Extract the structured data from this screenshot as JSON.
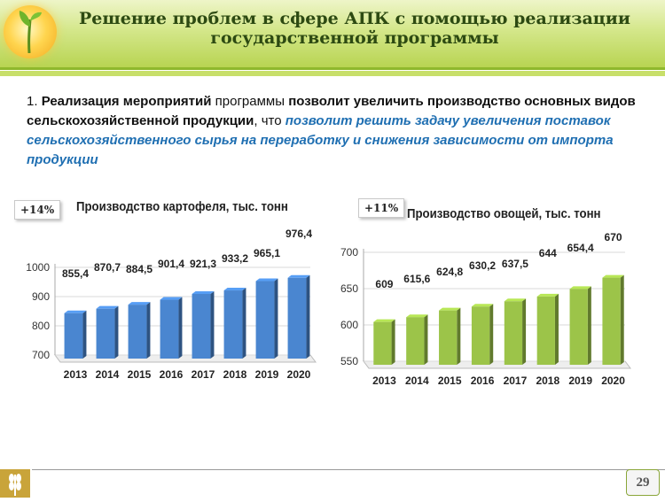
{
  "header": {
    "title_line1": "Решение проблем в сфере АПК с помощью реализации",
    "title_line2": "государственной программы"
  },
  "intro": {
    "num": "1.",
    "part1": "Реализация мероприятий",
    "part2": "программы",
    "part3": "позволит увеличить производство основных видов сельскохозяйственной продукции",
    "part4": ", что",
    "part5": "позволит решить задачу увеличения поставок сельскохозяйственного сырья на переработку и снижения зависимости от импорта продукции"
  },
  "chart_data": [
    {
      "type": "bar",
      "title": "Производство картофеля, тыс. тонн",
      "badge": "+14%",
      "categories": [
        "2013",
        "2014",
        "2015",
        "2016",
        "2017",
        "2018",
        "2019",
        "2020"
      ],
      "values": [
        855.4,
        870.7,
        884.5,
        901.4,
        921.3,
        933.2,
        965.1,
        976.4
      ],
      "value_labels": [
        "855,4",
        "870,7",
        "884,5",
        "901,4",
        "921,3",
        "933,2",
        "965,1",
        "976,4"
      ],
      "ylim": [
        700,
        1000
      ],
      "yticks": [
        700,
        800,
        900,
        1000
      ],
      "color": "#4a86d0"
    },
    {
      "type": "bar",
      "title": "Производство овощей, тыс. тонн",
      "badge": "+11%",
      "categories": [
        "2013",
        "2014",
        "2015",
        "2016",
        "2017",
        "2018",
        "2019",
        "2020"
      ],
      "values": [
        609,
        615.6,
        624.8,
        630.2,
        637.5,
        644,
        654.4,
        670
      ],
      "value_labels": [
        "609",
        "615,6",
        "624,8",
        "630,2",
        "637,5",
        "644",
        "654,4",
        "670"
      ],
      "ylim": [
        550,
        700
      ],
      "yticks": [
        550,
        600,
        650,
        700
      ],
      "color": "#9cc449"
    }
  ],
  "footer": {
    "page_number": "29",
    "icon": "wheat-icon"
  }
}
